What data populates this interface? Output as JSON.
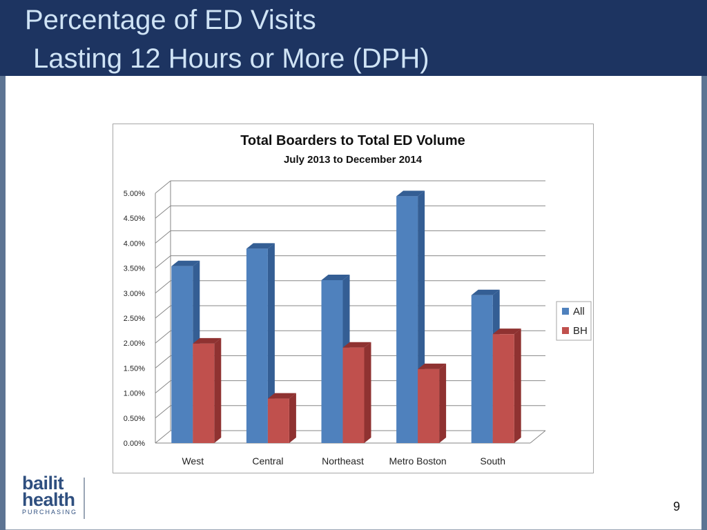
{
  "header": {
    "title_line1": "Percentage of ED Visits",
    "title_line2": "Lasting 12 Hours or More (DPH)"
  },
  "chart_data": {
    "type": "bar",
    "title": "Total Boarders to Total ED Volume",
    "subtitle": "July 2013 to December 2014",
    "categories": [
      "West",
      "Central",
      "Northeast",
      "Metro Boston",
      "South"
    ],
    "series": [
      {
        "name": "All",
        "color": "#4f81bd",
        "side": "#345e94",
        "values": [
          0.0354,
          0.0389,
          0.0326,
          0.0494,
          0.0296
        ]
      },
      {
        "name": "BH",
        "color": "#c0504d",
        "side": "#8f3231",
        "values": [
          0.0199,
          0.0089,
          0.0191,
          0.0148,
          0.0218
        ]
      }
    ],
    "ylim": [
      0,
      0.05
    ],
    "yticks": [
      "0.00%",
      "0.50%",
      "1.00%",
      "1.50%",
      "2.00%",
      "2.50%",
      "3.00%",
      "3.50%",
      "4.00%",
      "4.50%",
      "5.00%"
    ],
    "grid": true,
    "legend": "right"
  },
  "logo": {
    "line1": "bailit",
    "line2": "health",
    "line3": "PURCHASING"
  },
  "page_number": "9"
}
